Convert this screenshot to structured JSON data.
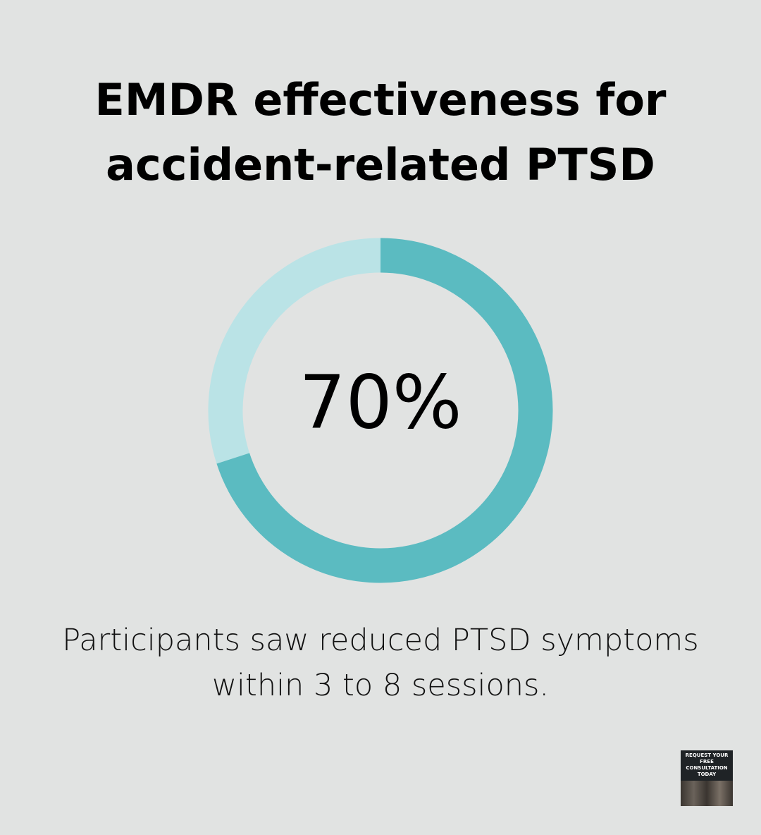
{
  "chart_data": {
    "type": "donut",
    "title": "EMDR effectiveness for accident-related PTSD",
    "values": [
      70,
      30
    ],
    "value_labels": [
      "70%",
      null
    ],
    "colors": [
      "#5bbbc1",
      "#bae3e6"
    ],
    "caption": "Participants saw reduced PTSD symptoms within 3 to 8 sessions."
  },
  "badge": {
    "text": "REQUEST YOUR FREE CONSULTATION TODAY"
  }
}
